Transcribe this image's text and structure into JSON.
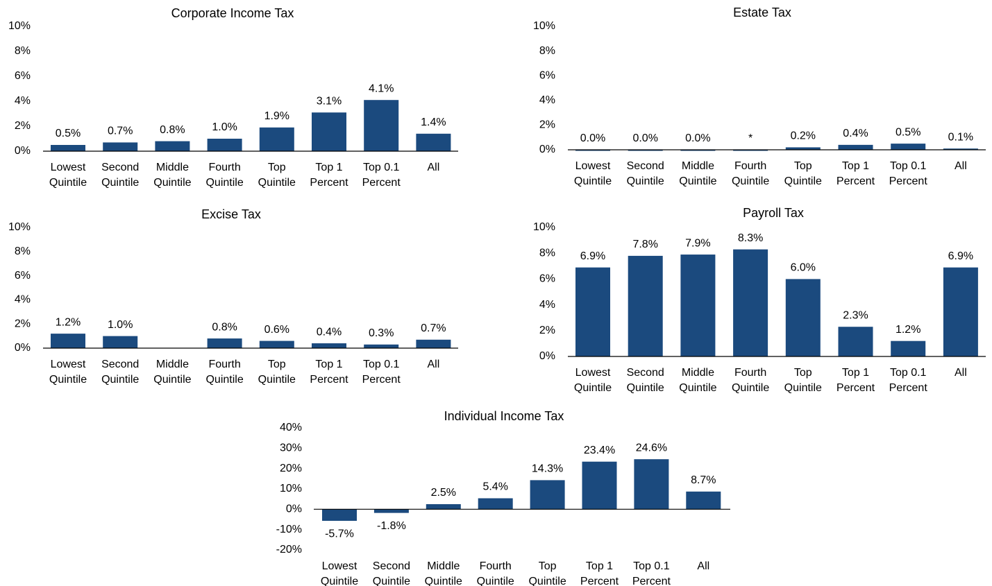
{
  "chart_data": [
    {
      "type": "bar",
      "title": "Corporate Income Tax",
      "color": "#1b4a7e",
      "categories": [
        "Lowest Quintile",
        "Second Quintile",
        "Middle Quintile",
        "Fourth Quintile",
        "Top Quintile",
        "Top 1 Percent",
        "Top 0.1 Percent",
        "All"
      ],
      "values": [
        0.5,
        0.7,
        0.8,
        1.0,
        1.9,
        3.1,
        4.1,
        1.4
      ],
      "value_labels": [
        "0.5%",
        "0.7%",
        "0.8%",
        "1.0%",
        "1.9%",
        "3.1%",
        "4.1%",
        "1.4%"
      ],
      "ylim": [
        0,
        10
      ],
      "yticks": [
        {
          "value": 0,
          "label": "0%"
        },
        {
          "value": 2,
          "label": "2%"
        },
        {
          "value": 4,
          "label": "4%"
        },
        {
          "value": 6,
          "label": "6%"
        },
        {
          "value": 8,
          "label": "8%"
        },
        {
          "value": 10,
          "label": "10%"
        }
      ]
    },
    {
      "type": "bar",
      "title": "Estate Tax",
      "color": "#1b4a7e",
      "categories": [
        "Lowest Quintile",
        "Second Quintile",
        "Middle Quintile",
        "Fourth Quintile",
        "Top Quintile",
        "Top 1 Percent",
        "Top 0.1 Percent",
        "All"
      ],
      "values": [
        0.0,
        0.0,
        0.0,
        0,
        0.2,
        0.4,
        0.5,
        0.1
      ],
      "value_labels": [
        "0.0%",
        "0.0%",
        "0.0%",
        "*",
        "0.2%",
        "0.4%",
        "0.5%",
        "0.1%"
      ],
      "ylim": [
        0,
        10
      ],
      "yticks": [
        {
          "value": 0,
          "label": "0%"
        },
        {
          "value": 2,
          "label": "2%"
        },
        {
          "value": 4,
          "label": "4%"
        },
        {
          "value": 6,
          "label": "6%"
        },
        {
          "value": 8,
          "label": "8%"
        },
        {
          "value": 10,
          "label": "10%"
        }
      ]
    },
    {
      "type": "bar",
      "title": "Excise Tax",
      "color": "#1b4a7e",
      "categories": [
        "Lowest Quintile",
        "Second Quintile",
        "Middle Quintile",
        "Fourth Quintile",
        "Top Quintile",
        "Top 1 Percent",
        "Top 0.1 Percent",
        "All"
      ],
      "values": [
        1.2,
        1.0,
        null,
        0.8,
        0.6,
        0.4,
        0.3,
        0.7
      ],
      "value_labels": [
        "1.2%",
        "1.0%",
        null,
        "0.8%",
        "0.6%",
        "0.4%",
        "0.3%",
        "0.7%"
      ],
      "ylim": [
        0,
        10
      ],
      "yticks": [
        {
          "value": 0,
          "label": "0%"
        },
        {
          "value": 2,
          "label": "2%"
        },
        {
          "value": 4,
          "label": "4%"
        },
        {
          "value": 6,
          "label": "6%"
        },
        {
          "value": 8,
          "label": "8%"
        },
        {
          "value": 10,
          "label": "10%"
        }
      ]
    },
    {
      "type": "bar",
      "title": "Payroll Tax",
      "color": "#1b4a7e",
      "categories": [
        "Lowest Quintile",
        "Second Quintile",
        "Middle Quintile",
        "Fourth Quintile",
        "Top Quintile",
        "Top 1 Percent",
        "Top 0.1 Percent",
        "All"
      ],
      "values": [
        6.9,
        7.8,
        7.9,
        8.3,
        6.0,
        2.3,
        1.2,
        6.9
      ],
      "value_labels": [
        "6.9%",
        "7.8%",
        "7.9%",
        "8.3%",
        "6.0%",
        "2.3%",
        "1.2%",
        "6.9%"
      ],
      "ylim": [
        0,
        10
      ],
      "yticks": [
        {
          "value": 0,
          "label": "0%"
        },
        {
          "value": 2,
          "label": "2%"
        },
        {
          "value": 4,
          "label": "4%"
        },
        {
          "value": 6,
          "label": "6%"
        },
        {
          "value": 8,
          "label": "8%"
        },
        {
          "value": 10,
          "label": "10%"
        }
      ]
    },
    {
      "type": "bar",
      "title": "Individual Income Tax",
      "color": "#1b4a7e",
      "categories": [
        "Lowest Quintile",
        "Second Quintile",
        "Middle Quintile",
        "Fourth Quintile",
        "Top Quintile",
        "Top 1 Percent",
        "Top 0.1 Percent",
        "All"
      ],
      "values": [
        -5.7,
        -1.8,
        2.5,
        5.4,
        14.3,
        23.4,
        24.6,
        8.7
      ],
      "value_labels": [
        "-5.7%",
        "-1.8%",
        "2.5%",
        "5.4%",
        "14.3%",
        "23.4%",
        "24.6%",
        "8.7%"
      ],
      "ylim": [
        -20,
        40
      ],
      "yticks": [
        {
          "value": -20,
          "label": "-20%"
        },
        {
          "value": -10,
          "label": "-10%"
        },
        {
          "value": 0,
          "label": "0%"
        },
        {
          "value": 10,
          "label": "10%"
        },
        {
          "value": 20,
          "label": "20%"
        },
        {
          "value": 30,
          "label": "30%"
        },
        {
          "value": 40,
          "label": "40%"
        }
      ]
    }
  ]
}
